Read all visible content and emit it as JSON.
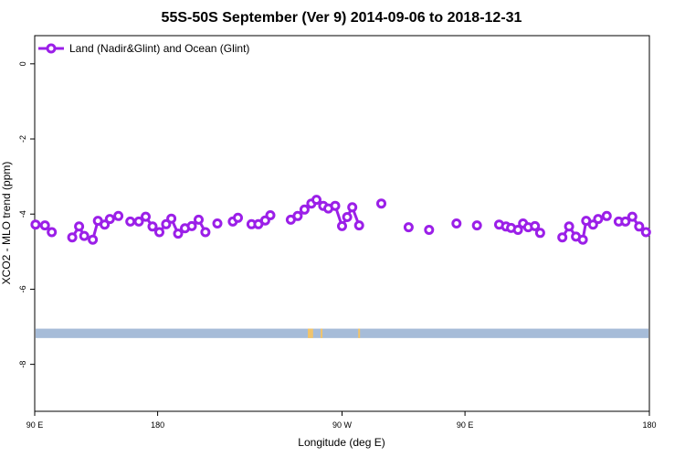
{
  "chart_data": {
    "type": "line",
    "title": "55S-50S September (Ver 9)   2014-09-06 to 2018-12-31",
    "xlabel": "Longitude (deg E)",
    "ylabel": "XCO2 - MLO trend (ppm)",
    "xlim": [
      90,
      450
    ],
    "ylim": [
      -9.25,
      0.75
    ],
    "x_tick_values": [
      90,
      162,
      270,
      342,
      450
    ],
    "x_tick_labels": [
      "90 E",
      "180",
      "90 W",
      "90 E",
      "180"
    ],
    "y_tick_values": [
      0,
      -2,
      -4,
      -6,
      -8
    ],
    "y_tick_labels": [
      "0",
      "-2",
      "-4",
      "-6",
      "-8"
    ],
    "grid": false,
    "legend_position": "top-left",
    "series": [
      {
        "name": "Land (Nadir&Glint) and Ocean (Glint)",
        "color": "#9b1fe8",
        "marker": "open-circle",
        "segments": [
          [
            [
              90.5,
              -4.28
            ],
            [
              96,
              -4.3
            ],
            [
              100,
              -4.48
            ]
          ],
          [
            [
              112,
              -4.62
            ],
            [
              116,
              -4.33
            ],
            [
              119,
              -4.58
            ],
            [
              124,
              -4.68
            ],
            [
              127,
              -4.18
            ],
            [
              131,
              -4.28
            ],
            [
              134,
              -4.13
            ],
            [
              139,
              -4.05
            ]
          ],
          [
            [
              146,
              -4.2
            ],
            [
              151,
              -4.2
            ],
            [
              155,
              -4.07
            ],
            [
              159,
              -4.33
            ],
            [
              163,
              -4.48
            ],
            [
              167,
              -4.27
            ],
            [
              170,
              -4.12
            ],
            [
              174,
              -4.52
            ],
            [
              178,
              -4.38
            ],
            [
              182,
              -4.32
            ],
            [
              186,
              -4.15
            ],
            [
              190,
              -4.48
            ]
          ],
          [
            [
              197,
              -4.25
            ]
          ],
          [
            [
              206,
              -4.2
            ],
            [
              209,
              -4.1
            ]
          ],
          [
            [
              217,
              -4.27
            ],
            [
              221,
              -4.27
            ],
            [
              225,
              -4.17
            ],
            [
              228,
              -4.03
            ]
          ],
          [
            [
              240,
              -4.15
            ],
            [
              244,
              -4.05
            ],
            [
              248,
              -3.88
            ],
            [
              252,
              -3.72
            ],
            [
              255,
              -3.62
            ],
            [
              259,
              -3.78
            ],
            [
              262,
              -3.85
            ],
            [
              266,
              -3.78
            ],
            [
              270,
              -4.32
            ],
            [
              273,
              -4.08
            ],
            [
              276,
              -3.82
            ],
            [
              280,
              -4.3
            ]
          ],
          [
            [
              293,
              -3.72
            ]
          ],
          [
            [
              309,
              -4.35
            ]
          ],
          [
            [
              321,
              -4.42
            ]
          ],
          [
            [
              337,
              -4.25
            ]
          ],
          [
            [
              349,
              -4.3
            ]
          ],
          [
            [
              362,
              -4.28
            ],
            [
              366,
              -4.33
            ],
            [
              369,
              -4.37
            ],
            [
              373,
              -4.42
            ],
            [
              376,
              -4.25
            ],
            [
              379,
              -4.35
            ],
            [
              383,
              -4.32
            ],
            [
              386,
              -4.5
            ]
          ],
          [
            [
              399,
              -4.62
            ],
            [
              403,
              -4.33
            ],
            [
              407,
              -4.6
            ],
            [
              411,
              -4.68
            ],
            [
              413,
              -4.18
            ],
            [
              417,
              -4.28
            ],
            [
              420,
              -4.13
            ],
            [
              425,
              -4.05
            ]
          ],
          [
            [
              432,
              -4.2
            ],
            [
              436,
              -4.2
            ],
            [
              440,
              -4.07
            ],
            [
              444,
              -4.33
            ],
            [
              448,
              -4.48
            ]
          ]
        ]
      }
    ],
    "coverage_band": {
      "y_range": [
        -7.05,
        -7.3
      ],
      "color": "#a6bcd8",
      "gap_marks": [
        {
          "x": 250.5,
          "color": "#f2c46a"
        },
        {
          "x": 251.5,
          "color": "#f2c46a"
        },
        {
          "x": 252.5,
          "color": "#f2c46a"
        },
        {
          "x": 258,
          "color": "#f2c46a"
        },
        {
          "x": 280,
          "color": "#f2c46a"
        }
      ]
    }
  }
}
